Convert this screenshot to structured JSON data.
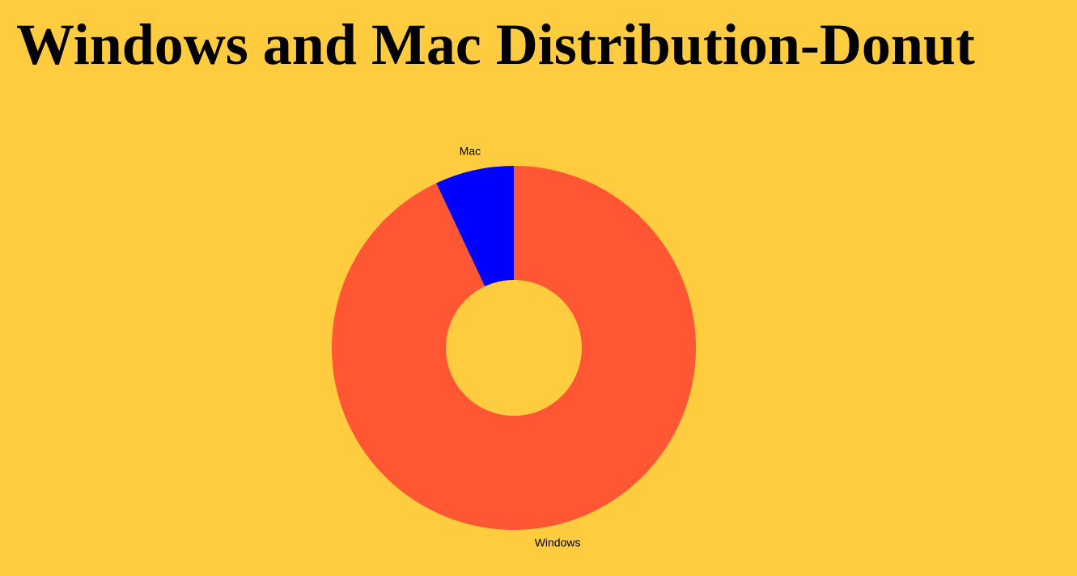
{
  "title": "Windows and Mac Distribution-Donut",
  "chart_data": {
    "type": "pie",
    "donut": true,
    "title": "Windows and Mac Distribution-Donut",
    "categories": [
      "Windows",
      "Mac"
    ],
    "values": [
      93,
      7
    ],
    "colors": [
      "#FF5733",
      "#0000FF"
    ],
    "background": "#FFCC3F",
    "legend": "none"
  }
}
